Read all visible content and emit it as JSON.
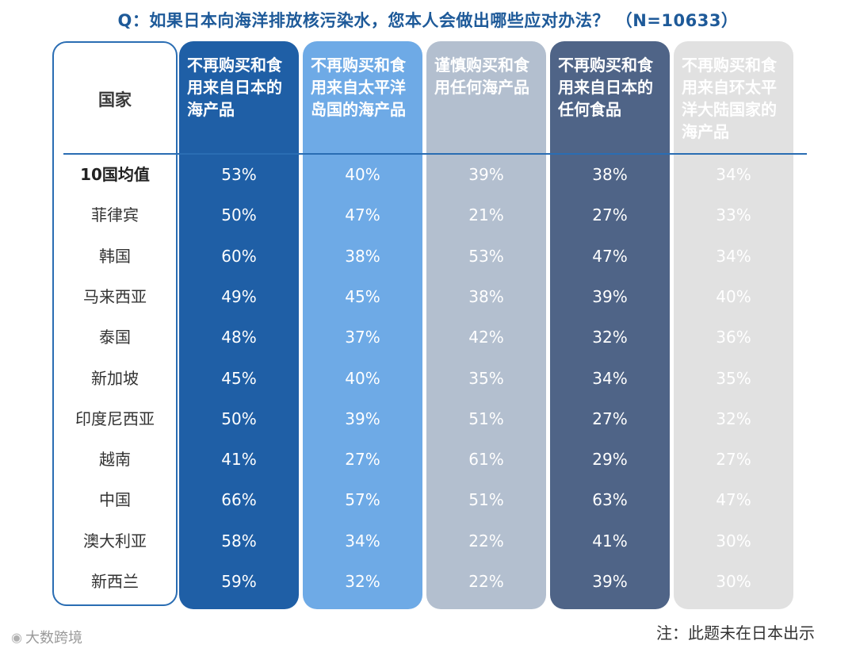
{
  "title": "Q：如果日本向海洋排放核污染水，您本人会做出哪些应对办法？ （N=10633）",
  "country_header": "国家",
  "note": "注：此题未在日本出示",
  "brand": {
    "icon": "weibo-logo-icon",
    "text": "大数跨境"
  },
  "colors": {
    "title": "#1e5a99",
    "columns": [
      {
        "bg": "#1f5fa6",
        "text": "#ffffff"
      },
      {
        "bg": "#6eaae6",
        "text": "#ffffff"
      },
      {
        "bg": "#b3bfcf",
        "text": "#ffffff"
      },
      {
        "bg": "#4f6487",
        "text": "#ffffff"
      },
      {
        "bg": "#e1e1e1",
        "text": "#ffffff"
      }
    ]
  },
  "chart_data": {
    "type": "table",
    "title": "Q：如果日本向海洋排放核污染水，您本人会做出哪些应对办法？ （N=10633）",
    "row_header": "国家",
    "columns": [
      "不再购买和食用来自日本的海产品",
      "不再购买和食用来自太平洋岛国的海产品",
      "谨慎购买和食用任何海产品",
      "不再购买和食用来自日本的任何食品",
      "不再购买和食用来自环太平洋大陆国家的海产品"
    ],
    "rows": [
      {
        "country": "10国均值",
        "values": [
          "53%",
          "40%",
          "39%",
          "38%",
          "34%"
        ]
      },
      {
        "country": "菲律宾",
        "values": [
          "50%",
          "47%",
          "21%",
          "27%",
          "33%"
        ]
      },
      {
        "country": "韩国",
        "values": [
          "60%",
          "38%",
          "53%",
          "47%",
          "34%"
        ]
      },
      {
        "country": "马来西亚",
        "values": [
          "49%",
          "45%",
          "38%",
          "39%",
          "40%"
        ]
      },
      {
        "country": "泰国",
        "values": [
          "48%",
          "37%",
          "42%",
          "32%",
          "36%"
        ]
      },
      {
        "country": "新加坡",
        "values": [
          "45%",
          "40%",
          "35%",
          "34%",
          "35%"
        ]
      },
      {
        "country": "印度尼西亚",
        "values": [
          "50%",
          "39%",
          "51%",
          "27%",
          "32%"
        ]
      },
      {
        "country": "越南",
        "values": [
          "41%",
          "27%",
          "61%",
          "29%",
          "27%"
        ]
      },
      {
        "country": "中国",
        "values": [
          "66%",
          "57%",
          "51%",
          "63%",
          "47%"
        ]
      },
      {
        "country": "澳大利亚",
        "values": [
          "58%",
          "34%",
          "22%",
          "41%",
          "30%"
        ]
      },
      {
        "country": "新西兰",
        "values": [
          "59%",
          "32%",
          "22%",
          "39%",
          "30%"
        ]
      }
    ]
  }
}
